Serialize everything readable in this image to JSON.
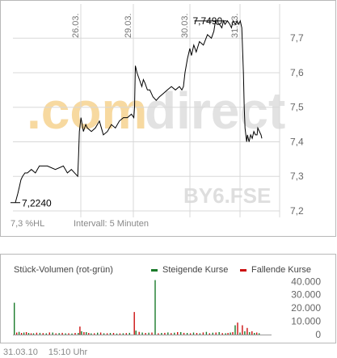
{
  "watermark": "comdirect",
  "ticker": "BY6.FSE",
  "info": {
    "change": "7,3 %HL",
    "interval": "Intervall: 5 Minuten"
  },
  "footer": {
    "date": "31.03.10",
    "time": "15:10 Uhr"
  },
  "volume_legend": {
    "title": "Stück-Volumen (rot-grün)",
    "rising": "Steigende Kurse",
    "falling": "Fallende Kurse"
  },
  "colors": {
    "line": "#000000",
    "rising": "#1a7a2a",
    "falling": "#cc1111",
    "grid": "#d8d8d8",
    "watermark_orange": "#f7d9a0",
    "watermark_gray": "#e4e4e4"
  },
  "chart_data": [
    {
      "type": "line",
      "title": "",
      "ylabel": "",
      "ylim": [
        7.2,
        7.78
      ],
      "y_ticks": [
        "7,2",
        "7,3",
        "7,4",
        "7,5",
        "7,6",
        "7,7"
      ],
      "y_tick_values": [
        7.2,
        7.3,
        7.4,
        7.5,
        7.6,
        7.7
      ],
      "date_labels": [
        "26.03.",
        "29.03.",
        "30.03.",
        "31.03."
      ],
      "annotations": {
        "low": "7,2240",
        "high": "7,7490"
      },
      "series": [
        {
          "x": [
            0,
            3,
            5,
            7,
            9,
            12,
            15,
            20,
            25,
            30,
            40,
            50,
            60,
            65,
            70,
            78,
            79,
            80,
            82,
            85,
            88,
            90,
            95,
            100,
            105,
            110,
            115,
            120,
            125,
            130,
            135,
            140,
            145,
            148,
            149,
            150,
            152,
            155,
            158,
            160,
            162,
            165,
            168,
            172,
            176,
            180,
            185,
            190,
            195,
            200,
            205,
            208,
            210,
            212,
            215,
            218,
            220,
            223,
            226,
            230,
            235,
            240,
            245,
            248,
            250,
            252,
            255,
            258,
            260,
            262,
            265,
            268,
            270,
            272,
            275,
            277,
            279,
            281,
            283,
            285,
            286,
            287,
            288,
            289,
            290,
            292,
            294,
            296,
            298,
            300,
            302,
            303,
            305,
            307,
            308
          ],
          "y": [
            7.224,
            7.25,
            7.27,
            7.29,
            7.3,
            7.31,
            7.31,
            7.32,
            7.31,
            7.33,
            7.33,
            7.32,
            7.33,
            7.31,
            7.32,
            7.3,
            7.36,
            7.43,
            7.47,
            7.43,
            7.45,
            7.44,
            7.43,
            7.44,
            7.46,
            7.42,
            7.43,
            7.45,
            7.44,
            7.46,
            7.47,
            7.47,
            7.48,
            7.47,
            7.5,
            7.62,
            7.6,
            7.58,
            7.56,
            7.58,
            7.57,
            7.55,
            7.55,
            7.53,
            7.52,
            7.53,
            7.54,
            7.55,
            7.56,
            7.55,
            7.56,
            7.55,
            7.56,
            7.6,
            7.64,
            7.67,
            7.65,
            7.68,
            7.66,
            7.69,
            7.68,
            7.71,
            7.7,
            7.72,
            7.749,
            7.74,
            7.74,
            7.73,
            7.75,
            7.74,
            7.75,
            7.74,
            7.73,
            7.75,
            7.74,
            7.75,
            7.74,
            7.75,
            7.73,
            7.6,
            7.5,
            7.44,
            7.42,
            7.4,
            7.42,
            7.4,
            7.42,
            7.41,
            7.43,
            7.42,
            7.42,
            7.44,
            7.43,
            7.42,
            7.41
          ]
        }
      ]
    },
    {
      "type": "bar",
      "title": "",
      "ylim": [
        0,
        42000
      ],
      "y_ticks": [
        "0",
        "10.000",
        "20.000",
        "30.000",
        "40.000"
      ],
      "y_tick_values": [
        0,
        10000,
        20000,
        30000,
        40000
      ],
      "series": [
        {
          "name": "Steigende Kurse",
          "x": [
            0,
            6,
            12,
            18,
            24,
            32,
            40,
            48,
            56,
            64,
            72,
            80,
            84,
            90,
            96,
            104,
            112,
            120,
            128,
            136,
            144,
            152,
            160,
            168,
            176,
            184,
            192,
            200,
            208,
            216,
            224,
            232,
            240,
            248,
            256,
            264,
            270,
            276,
            282,
            288,
            294,
            300,
            306
          ],
          "values": [
            24000,
            2000,
            1500,
            1200,
            1000,
            1300,
            900,
            1500,
            1100,
            900,
            800,
            1200,
            2500,
            1800,
            900,
            1400,
            1000,
            1200,
            800,
            1000,
            1300,
            3000,
            1500,
            1400,
            41000,
            1200,
            1600,
            1400,
            1800,
            1200,
            1500,
            1000,
            2000,
            1400,
            1800,
            1000,
            1500,
            7000,
            1500,
            2500,
            1800,
            1200,
            1000
          ]
        },
        {
          "name": "Fallende Kurse",
          "x": [
            3,
            9,
            15,
            21,
            28,
            36,
            44,
            52,
            60,
            68,
            76,
            82,
            87,
            93,
            100,
            108,
            116,
            124,
            132,
            140,
            150,
            156,
            164,
            172,
            180,
            188,
            196,
            204,
            212,
            220,
            228,
            236,
            244,
            252,
            260,
            267,
            273,
            279,
            285,
            291,
            297,
            303
          ],
          "values": [
            1500,
            1200,
            1800,
            1000,
            1400,
            1100,
            1600,
            900,
            1300,
            1000,
            1200,
            6000,
            1800,
            1200,
            1000,
            1500,
            1000,
            1200,
            900,
            1100,
            17000,
            2000,
            1200,
            1500,
            1000,
            1300,
            1100,
            1800,
            1300,
            1000,
            1200,
            1600,
            1000,
            1500,
            1100,
            1200,
            1800,
            9000,
            7000,
            5000,
            2500,
            1500
          ]
        }
      ]
    }
  ]
}
